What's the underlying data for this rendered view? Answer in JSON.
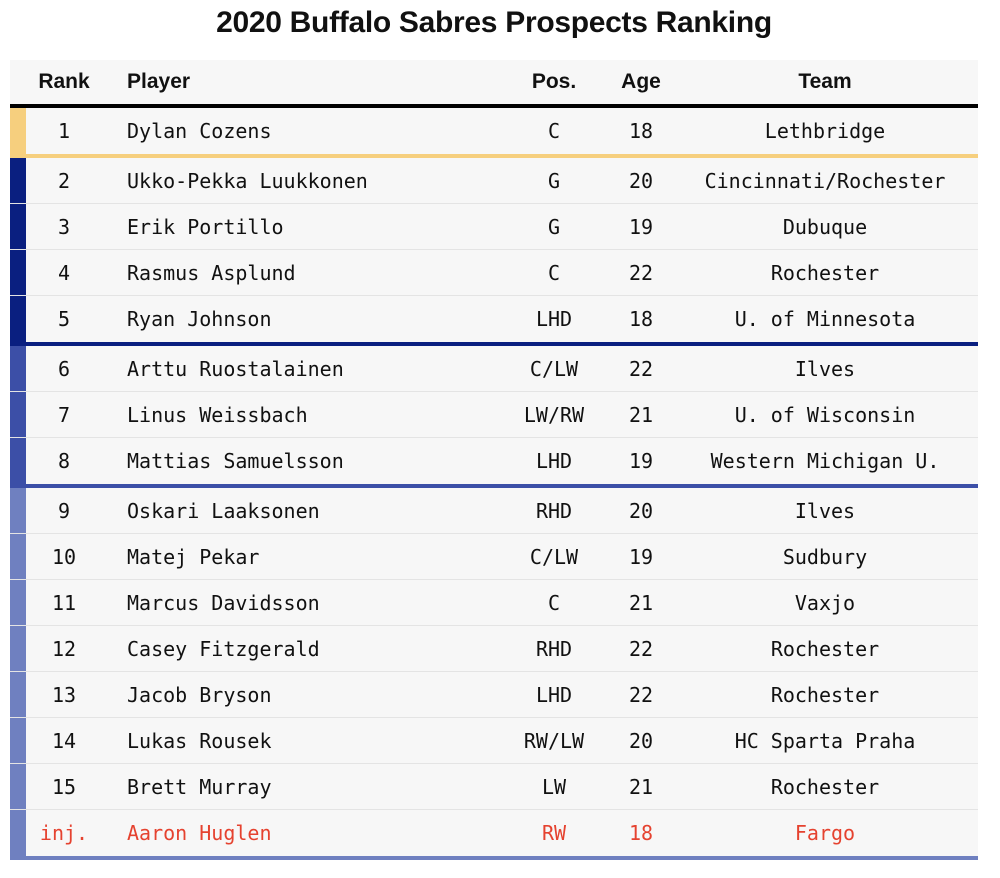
{
  "title": "2020 Buffalo Sabres Prospects Ranking",
  "columns": [
    "Rank",
    "Player",
    "Pos.",
    "Age",
    "Team"
  ],
  "colors": {
    "tier1": "#f6cf7e",
    "tier2": "#0a1f80",
    "tier3": "#3c4fa7",
    "tier4": "#6f80c0",
    "injured_text": "#e5422f"
  },
  "chart_data": {
    "type": "table",
    "title": "2020 Buffalo Sabres Prospects Ranking",
    "columns": [
      "Rank",
      "Player",
      "Pos.",
      "Age",
      "Team"
    ],
    "rows": [
      {
        "rank": "1",
        "player": "Dylan Cozens",
        "pos": "C",
        "age": "18",
        "team": "Lethbridge",
        "tier": 1
      },
      {
        "rank": "2",
        "player": "Ukko-Pekka Luukkonen",
        "pos": "G",
        "age": "20",
        "team": "Cincinnati/Rochester",
        "tier": 2
      },
      {
        "rank": "3",
        "player": "Erik Portillo",
        "pos": "G",
        "age": "19",
        "team": "Dubuque",
        "tier": 2
      },
      {
        "rank": "4",
        "player": "Rasmus Asplund",
        "pos": "C",
        "age": "22",
        "team": "Rochester",
        "tier": 2
      },
      {
        "rank": "5",
        "player": "Ryan Johnson",
        "pos": "LHD",
        "age": "18",
        "team": "U. of Minnesota",
        "tier": 2
      },
      {
        "rank": "6",
        "player": "Arttu Ruostalainen",
        "pos": "C/LW",
        "age": "22",
        "team": "Ilves",
        "tier": 3
      },
      {
        "rank": "7",
        "player": "Linus Weissbach",
        "pos": "LW/RW",
        "age": "21",
        "team": "U. of Wisconsin",
        "tier": 3
      },
      {
        "rank": "8",
        "player": "Mattias Samuelsson",
        "pos": "LHD",
        "age": "19",
        "team": "Western Michigan U.",
        "tier": 3
      },
      {
        "rank": "9",
        "player": "Oskari Laaksonen",
        "pos": "RHD",
        "age": "20",
        "team": "Ilves",
        "tier": 4
      },
      {
        "rank": "10",
        "player": "Matej Pekar",
        "pos": "C/LW",
        "age": "19",
        "team": "Sudbury",
        "tier": 4
      },
      {
        "rank": "11",
        "player": "Marcus Davidsson",
        "pos": "C",
        "age": "21",
        "team": "Vaxjo",
        "tier": 4
      },
      {
        "rank": "12",
        "player": "Casey Fitzgerald",
        "pos": "RHD",
        "age": "22",
        "team": "Rochester",
        "tier": 4
      },
      {
        "rank": "13",
        "player": "Jacob Bryson",
        "pos": "LHD",
        "age": "22",
        "team": "Rochester",
        "tier": 4
      },
      {
        "rank": "14",
        "player": "Lukas Rousek",
        "pos": "RW/LW",
        "age": "20",
        "team": "HC Sparta Praha",
        "tier": 4
      },
      {
        "rank": "15",
        "player": "Brett Murray",
        "pos": "LW",
        "age": "21",
        "team": "Rochester",
        "tier": 4
      },
      {
        "rank": "inj.",
        "player": "Aaron Huglen",
        "pos": "RW",
        "age": "18",
        "team": "Fargo",
        "tier": 4,
        "injured": true
      }
    ]
  }
}
